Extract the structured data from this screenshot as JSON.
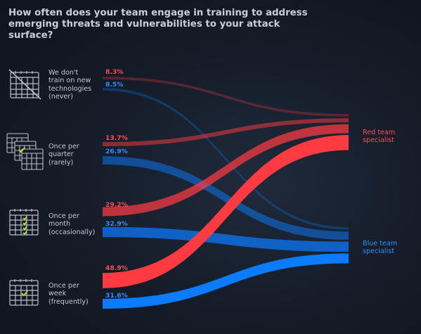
{
  "title": "How often does your team engage in training to address emerging threats and vulnerabilities to your attack surface?",
  "colors": {
    "red": "#ff3b42",
    "blue": "#0b7cff",
    "background": "#141b27"
  },
  "chart_data": {
    "type": "sankey",
    "categories": [
      {
        "label_lines": [
          "We don't",
          "train on new",
          "technologies",
          "(never)"
        ],
        "icon": "calendar-crossed-icon"
      },
      {
        "label_lines": [
          "Once per",
          "quarter",
          "(rarely)"
        ],
        "icon": "calendar-stack-icon"
      },
      {
        "label_lines": [
          "Once per",
          "month",
          "(occasionally)"
        ],
        "icon": "calendar-month-icon"
      },
      {
        "label_lines": [
          "Once per",
          "week",
          "(frequently)"
        ],
        "icon": "calendar-week-icon"
      }
    ],
    "series": [
      {
        "name": "Red team specialist",
        "label_lines": [
          "Red team",
          "specialist"
        ],
        "color": "#ff3b42",
        "values": [
          8.3,
          13.7,
          29.2,
          48.9
        ],
        "labels": [
          "8.3%",
          "13.7%",
          "29.2%",
          "48.9%"
        ]
      },
      {
        "name": "Blue team specialist",
        "label_lines": [
          "Blue team",
          "specialist"
        ],
        "color": "#0b7cff",
        "values": [
          8.5,
          26.9,
          32.9,
          31.6
        ],
        "labels": [
          "8.5%",
          "26.9%",
          "32.9%",
          "31.6%"
        ]
      }
    ]
  }
}
